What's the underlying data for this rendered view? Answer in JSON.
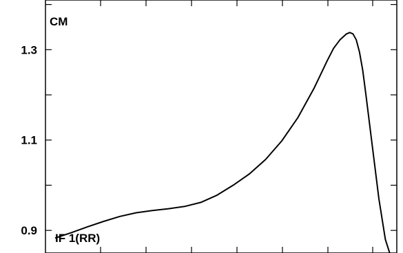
{
  "chart_data": {
    "type": "line",
    "top_label": "",
    "label_top_left": "CM",
    "label_bottom_left": "IF 1(RR)",
    "ylim": [
      0.85,
      1.41
    ],
    "y_ticks": [
      {
        "value": 1.3,
        "label": "1.3"
      },
      {
        "value": 1.1,
        "label": "1.1"
      },
      {
        "value": 0.9,
        "label": "0.9"
      }
    ],
    "y_minor_ticks": [
      1.4,
      1.2,
      1.0
    ],
    "grid": false,
    "series": [
      {
        "x": [
          0.0,
          0.05,
          0.1,
          0.15,
          0.2,
          0.25,
          0.3,
          0.35,
          0.4,
          0.45,
          0.5,
          0.55,
          0.6,
          0.65,
          0.7,
          0.75,
          0.8,
          0.82,
          0.84,
          0.86,
          0.88,
          0.9,
          0.91,
          0.92,
          0.93,
          0.94,
          0.95,
          0.96,
          0.98,
          1.0,
          1.02,
          1.04
        ],
        "y": [
          0.883,
          0.895,
          0.908,
          0.92,
          0.931,
          0.939,
          0.944,
          0.948,
          0.953,
          0.962,
          0.978,
          1.0,
          1.025,
          1.057,
          1.098,
          1.15,
          1.215,
          1.245,
          1.275,
          1.303,
          1.322,
          1.335,
          1.338,
          1.335,
          1.322,
          1.295,
          1.255,
          1.2,
          1.085,
          0.97,
          0.88,
          0.835
        ]
      }
    ]
  }
}
